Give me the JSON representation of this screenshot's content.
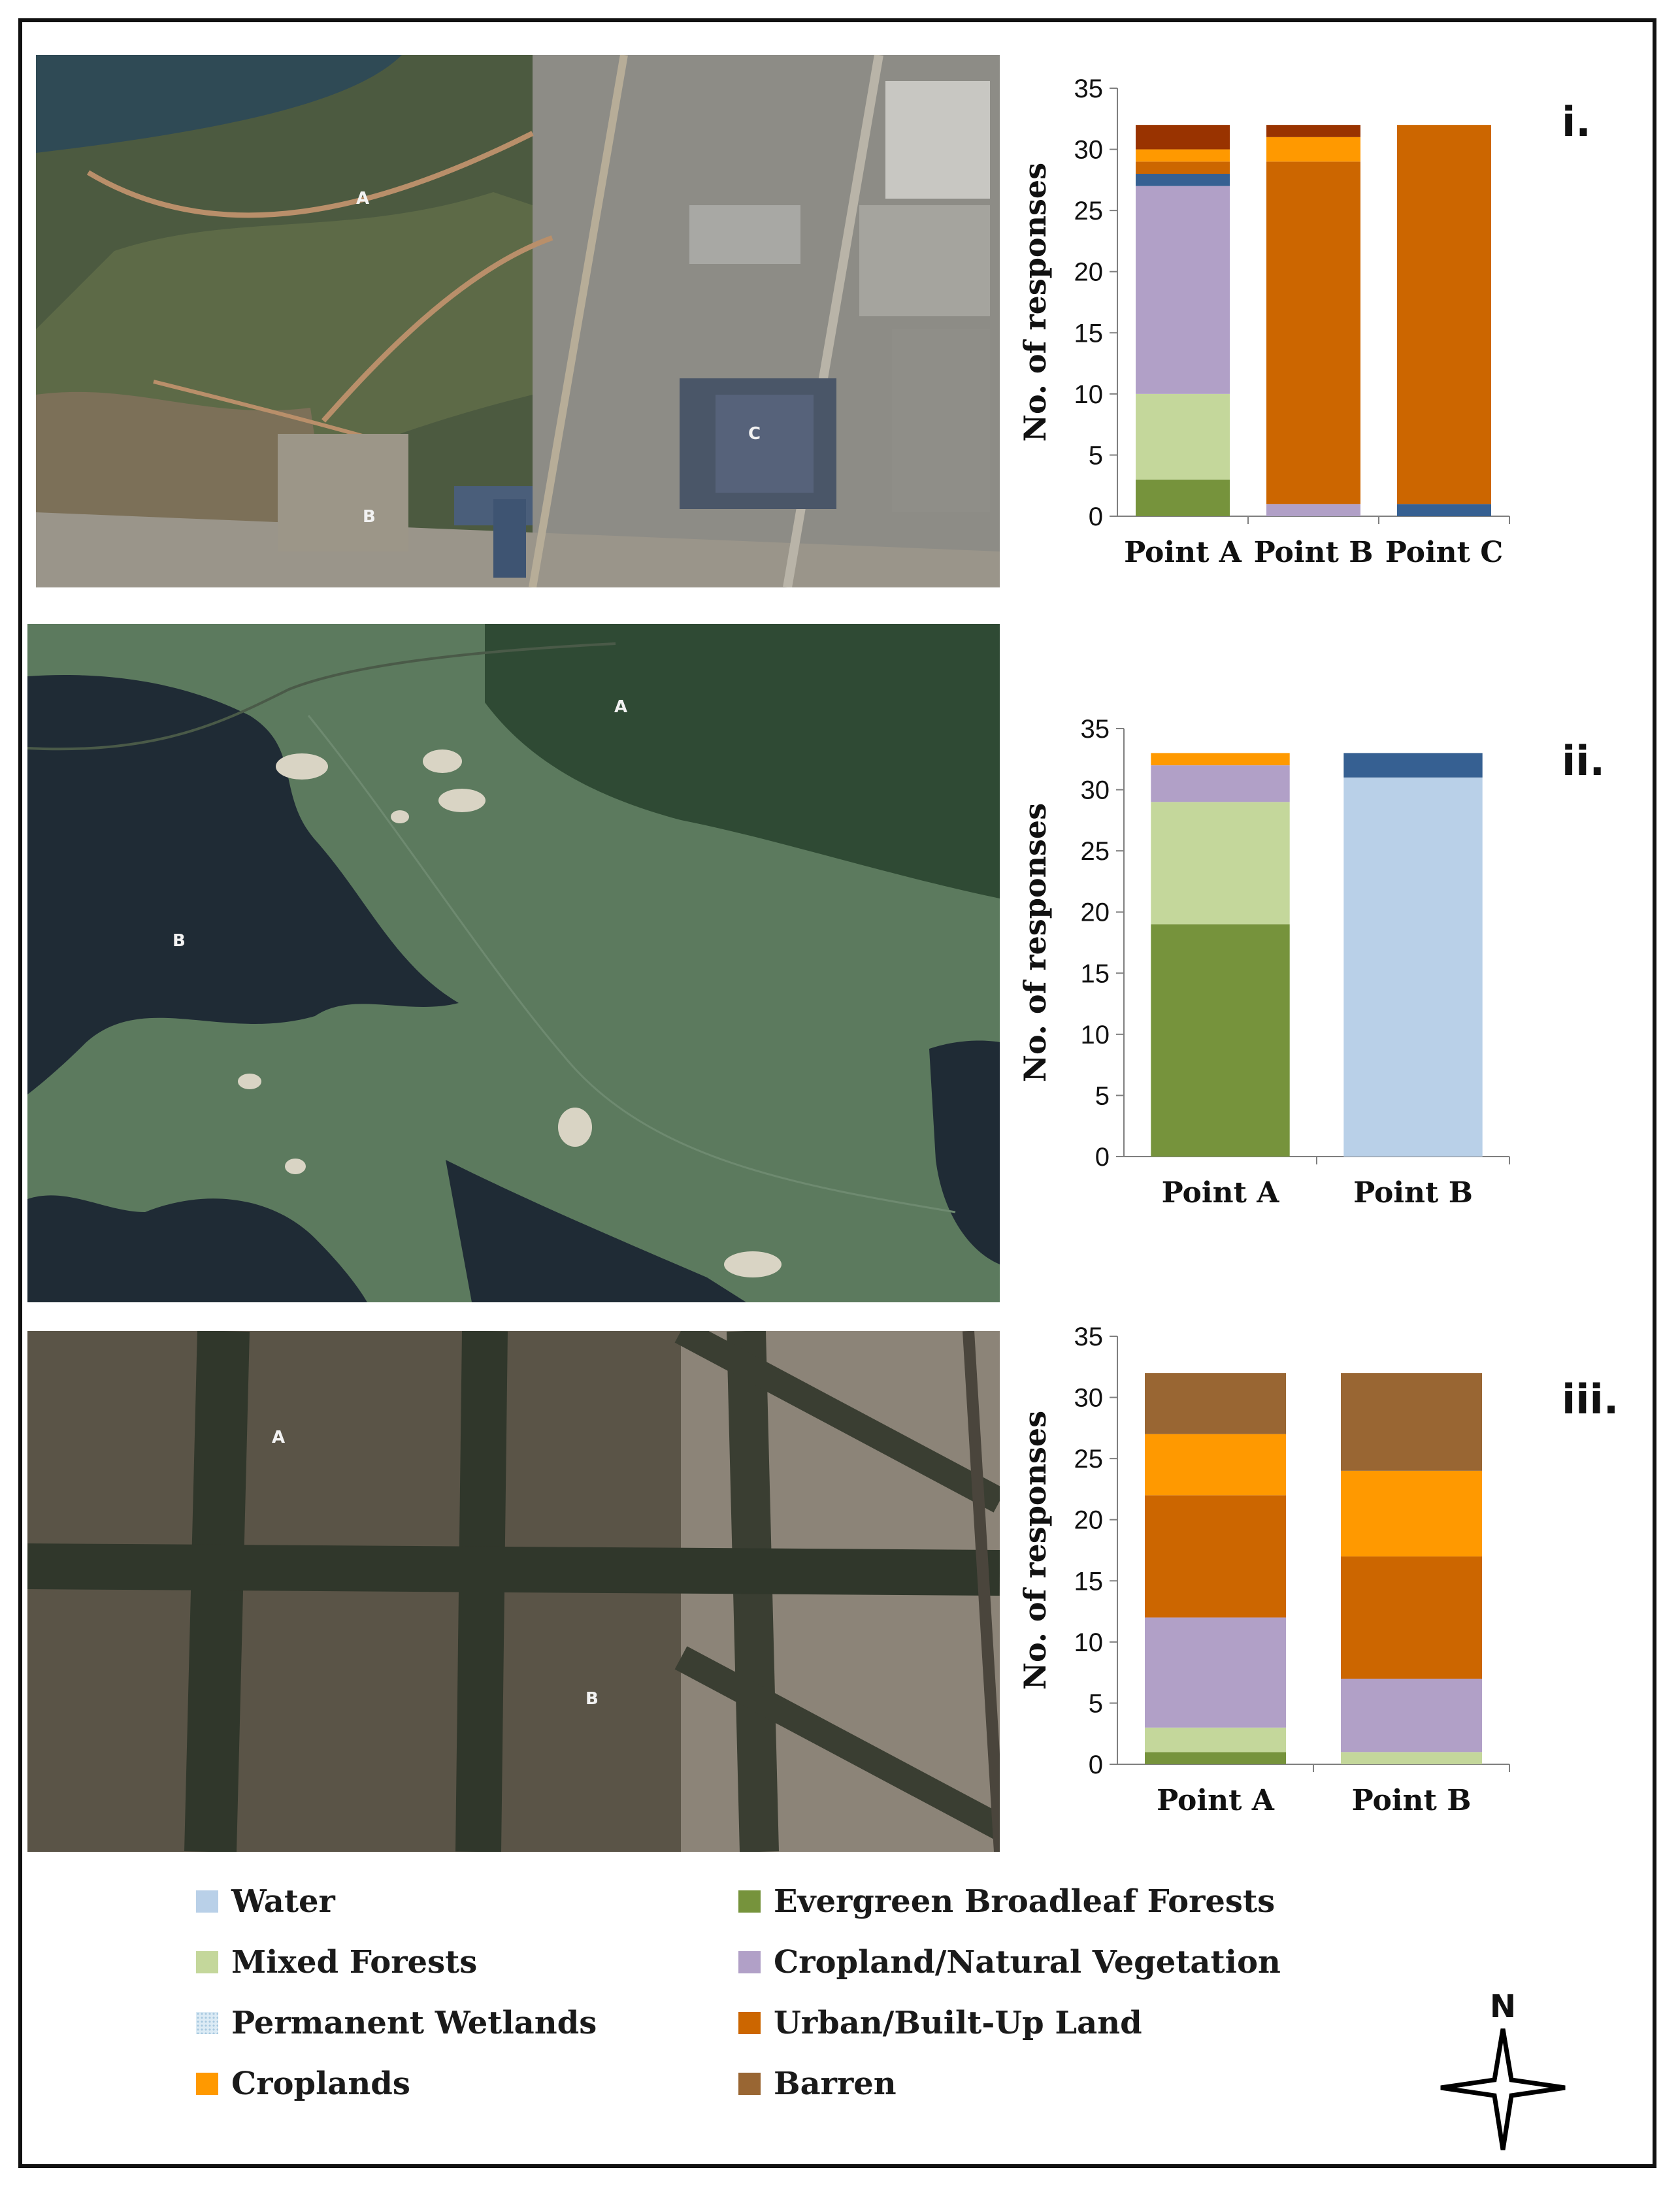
{
  "colors": {
    "water": "#b9d0e8",
    "evergreen": "#76933c",
    "mixed": "#c4d79b",
    "wetlands": "#dcebf5",
    "cropland_natural": "#b1a0c7",
    "urban": "#cc6600",
    "croplands": "#ff9900",
    "barren": "#996633",
    "dark_blue": "#366092",
    "dark_brown": "#993300"
  },
  "photos": [
    {
      "labels": [
        "A",
        "B",
        "C"
      ]
    },
    {
      "labels": [
        "A",
        "B"
      ]
    },
    {
      "labels": [
        "A",
        "B"
      ]
    }
  ],
  "legend": [
    {
      "label": "Water",
      "color": "#b9d0e8"
    },
    {
      "label": "Evergreen Broadleaf Forests",
      "color": "#76933c"
    },
    {
      "label": "Mixed Forests",
      "color": "#c4d79b"
    },
    {
      "label": "Cropland/Natural Vegetation",
      "color": "#b1a0c7"
    },
    {
      "label": "Permanent Wetlands",
      "color": "#dcebf5"
    },
    {
      "label": "Urban/Built-Up Land",
      "color": "#cc6600"
    },
    {
      "label": "Croplands",
      "color": "#ff9900"
    },
    {
      "label": "Barren",
      "color": "#996633"
    }
  ],
  "compass": {
    "label": "N"
  },
  "chart_data": [
    {
      "type": "bar",
      "stacked": true,
      "panel": "i.",
      "ylabel": "No. of responses",
      "ylim": [
        0,
        35
      ],
      "yticks": [
        0,
        5,
        10,
        15,
        20,
        25,
        30,
        35
      ],
      "categories": [
        "Point A",
        "Point B",
        "Point C"
      ],
      "stacks": [
        [
          {
            "category": "Evergreen Broadleaf Forests",
            "value": 3,
            "color": "#76933c"
          },
          {
            "category": "Mixed Forests",
            "value": 7,
            "color": "#c4d79b"
          },
          {
            "category": "Cropland/Natural Vegetation",
            "value": 17,
            "color": "#b1a0c7"
          },
          {
            "category": "",
            "value": 1,
            "color": "#366092"
          },
          {
            "category": "Urban/Built-Up Land",
            "value": 1,
            "color": "#cc6600"
          },
          {
            "category": "Croplands",
            "value": 1,
            "color": "#ff9900"
          },
          {
            "category": "",
            "value": 2,
            "color": "#993300"
          }
        ],
        [
          {
            "category": "Cropland/Natural Vegetation",
            "value": 1,
            "color": "#b1a0c7"
          },
          {
            "category": "Urban/Built-Up Land",
            "value": 28,
            "color": "#cc6600"
          },
          {
            "category": "Croplands",
            "value": 2,
            "color": "#ff9900"
          },
          {
            "category": "",
            "value": 1,
            "color": "#993300"
          }
        ],
        [
          {
            "category": "",
            "value": 1,
            "color": "#366092"
          },
          {
            "category": "Urban/Built-Up Land",
            "value": 31,
            "color": "#cc6600"
          }
        ]
      ]
    },
    {
      "type": "bar",
      "stacked": true,
      "panel": "ii.",
      "ylabel": "No. of responses",
      "ylim": [
        0,
        35
      ],
      "yticks": [
        0,
        5,
        10,
        15,
        20,
        25,
        30,
        35
      ],
      "categories": [
        "Point A",
        "Point B"
      ],
      "stacks": [
        [
          {
            "category": "Evergreen Broadleaf Forests",
            "value": 19,
            "color": "#76933c"
          },
          {
            "category": "Mixed Forests",
            "value": 10,
            "color": "#c4d79b"
          },
          {
            "category": "Cropland/Natural Vegetation",
            "value": 3,
            "color": "#b1a0c7"
          },
          {
            "category": "Croplands",
            "value": 1,
            "color": "#ff9900"
          }
        ],
        [
          {
            "category": "Water",
            "value": 31,
            "color": "#b9d0e8"
          },
          {
            "category": "",
            "value": 2,
            "color": "#366092"
          }
        ]
      ]
    },
    {
      "type": "bar",
      "stacked": true,
      "panel": "iii.",
      "ylabel": "No. of responses",
      "ylim": [
        0,
        35
      ],
      "yticks": [
        0,
        5,
        10,
        15,
        20,
        25,
        30,
        35
      ],
      "categories": [
        "Point A",
        "Point B"
      ],
      "stacks": [
        [
          {
            "category": "Evergreen Broadleaf Forests",
            "value": 1,
            "color": "#76933c"
          },
          {
            "category": "Mixed Forests",
            "value": 2,
            "color": "#c4d79b"
          },
          {
            "category": "Cropland/Natural Vegetation",
            "value": 9,
            "color": "#b1a0c7"
          },
          {
            "category": "Urban/Built-Up Land",
            "value": 10,
            "color": "#cc6600"
          },
          {
            "category": "Croplands",
            "value": 5,
            "color": "#ff9900"
          },
          {
            "category": "Barren",
            "value": 5,
            "color": "#996633"
          }
        ],
        [
          {
            "category": "Mixed Forests",
            "value": 1,
            "color": "#c4d79b"
          },
          {
            "category": "Cropland/Natural Vegetation",
            "value": 6,
            "color": "#b1a0c7"
          },
          {
            "category": "Urban/Built-Up Land",
            "value": 10,
            "color": "#cc6600"
          },
          {
            "category": "Croplands",
            "value": 7,
            "color": "#ff9900"
          },
          {
            "category": "Barren",
            "value": 8,
            "color": "#996633"
          }
        ]
      ]
    }
  ]
}
